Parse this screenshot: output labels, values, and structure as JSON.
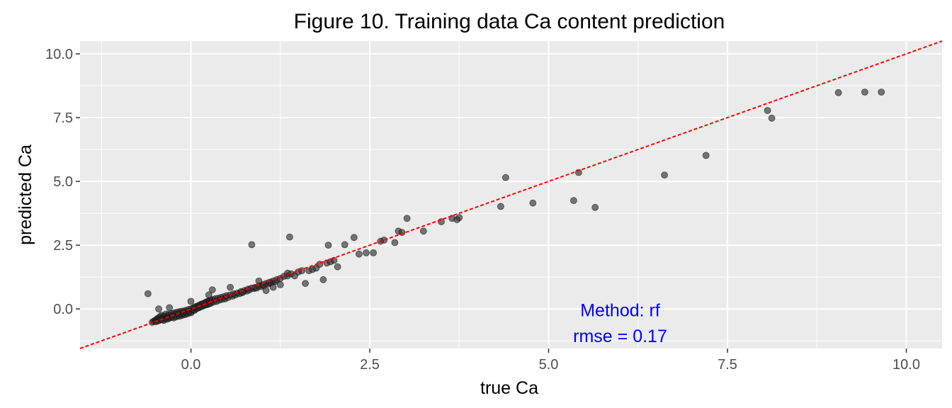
{
  "chart_data": {
    "type": "scatter",
    "title": "Figure 10.  Training data Ca content prediction",
    "xlabel": "true Ca",
    "ylabel": "predicted Ca",
    "xlim": [
      -1.55,
      10.5
    ],
    "ylim": [
      -1.55,
      10.5
    ],
    "xticks": [
      "0.0",
      "2.5",
      "5.0",
      "7.5",
      "10.0"
    ],
    "yticks": [
      "0.0",
      "2.5",
      "5.0",
      "7.5",
      "10.0"
    ],
    "grid": true,
    "reference_line": {
      "style": "dashed",
      "color": "#ff0000",
      "slope": 1,
      "intercept": 0
    },
    "annotations": [
      "Method: rf",
      "rmse = 0.17"
    ],
    "annotation_color": "#0000ff",
    "panel_color": "#ebebeb",
    "point_color": "#333333",
    "points": [
      [
        -0.54,
        -0.52
      ],
      [
        -0.52,
        -0.48
      ],
      [
        -0.5,
        -0.45
      ],
      [
        -0.49,
        -0.5
      ],
      [
        -0.48,
        -0.42
      ],
      [
        -0.47,
        -0.38
      ],
      [
        -0.46,
        -0.47
      ],
      [
        -0.45,
        -0.35
      ],
      [
        -0.44,
        -0.44
      ],
      [
        -0.43,
        -0.3
      ],
      [
        -0.42,
        -0.4
      ],
      [
        -0.41,
        -0.25
      ],
      [
        -0.4,
        -0.42
      ],
      [
        -0.39,
        -0.33
      ],
      [
        -0.38,
        -0.45
      ],
      [
        -0.37,
        -0.28
      ],
      [
        -0.36,
        -0.38
      ],
      [
        -0.35,
        -0.2
      ],
      [
        -0.34,
        -0.35
      ],
      [
        -0.33,
        -0.4
      ],
      [
        -0.32,
        -0.3
      ],
      [
        -0.31,
        -0.22
      ],
      [
        -0.3,
        -0.36
      ],
      [
        -0.29,
        -0.27
      ],
      [
        -0.28,
        -0.33
      ],
      [
        -0.27,
        -0.18
      ],
      [
        -0.26,
        -0.31
      ],
      [
        -0.25,
        -0.24
      ],
      [
        -0.24,
        -0.35
      ],
      [
        -0.23,
        -0.15
      ],
      [
        -0.22,
        -0.28
      ],
      [
        -0.21,
        -0.2
      ],
      [
        -0.2,
        -0.3
      ],
      [
        -0.19,
        -0.12
      ],
      [
        -0.18,
        -0.25
      ],
      [
        -0.17,
        -0.18
      ],
      [
        -0.16,
        -0.28
      ],
      [
        -0.15,
        -0.1
      ],
      [
        -0.14,
        -0.22
      ],
      [
        -0.13,
        -0.15
      ],
      [
        -0.12,
        -0.25
      ],
      [
        -0.11,
        -0.08
      ],
      [
        -0.1,
        -0.2
      ],
      [
        -0.09,
        -0.12
      ],
      [
        -0.08,
        -0.22
      ],
      [
        -0.07,
        -0.05
      ],
      [
        -0.06,
        -0.15
      ],
      [
        -0.05,
        -0.1
      ],
      [
        -0.04,
        -0.18
      ],
      [
        -0.03,
        -0.02
      ],
      [
        -0.02,
        -0.12
      ],
      [
        -0.01,
        -0.08
      ],
      [
        0.0,
        -0.15
      ],
      [
        0.01,
        0.02
      ],
      [
        0.02,
        -0.08
      ],
      [
        0.03,
        -0.02
      ],
      [
        0.04,
        0.05
      ],
      [
        0.05,
        -0.05
      ],
      [
        0.06,
        0.08
      ],
      [
        0.07,
        0.0
      ],
      [
        0.08,
        0.1
      ],
      [
        0.09,
        0.03
      ],
      [
        0.1,
        0.12
      ],
      [
        0.11,
        0.05
      ],
      [
        0.12,
        0.15
      ],
      [
        0.13,
        0.08
      ],
      [
        0.14,
        0.18
      ],
      [
        0.15,
        0.1
      ],
      [
        0.16,
        0.2
      ],
      [
        0.17,
        0.12
      ],
      [
        0.18,
        0.22
      ],
      [
        0.19,
        0.15
      ],
      [
        0.2,
        0.25
      ],
      [
        0.21,
        0.16
      ],
      [
        0.22,
        0.28
      ],
      [
        0.23,
        0.18
      ],
      [
        0.24,
        0.3
      ],
      [
        0.25,
        0.2
      ],
      [
        0.26,
        0.32
      ],
      [
        0.27,
        0.22
      ],
      [
        0.28,
        0.34
      ],
      [
        0.29,
        0.25
      ],
      [
        0.3,
        0.36
      ],
      [
        0.32,
        0.28
      ],
      [
        0.34,
        0.4
      ],
      [
        0.36,
        0.3
      ],
      [
        0.38,
        0.42
      ],
      [
        0.4,
        0.35
      ],
      [
        0.42,
        0.45
      ],
      [
        0.44,
        0.38
      ],
      [
        0.46,
        0.48
      ],
      [
        0.48,
        0.4
      ],
      [
        0.5,
        0.52
      ],
      [
        0.52,
        0.45
      ],
      [
        0.55,
        0.55
      ],
      [
        0.58,
        0.5
      ],
      [
        0.6,
        0.6
      ],
      [
        0.62,
        0.55
      ],
      [
        0.65,
        0.62
      ],
      [
        0.68,
        0.6
      ],
      [
        0.7,
        0.68
      ],
      [
        0.72,
        0.65
      ],
      [
        0.75,
        0.72
      ],
      [
        0.78,
        0.7
      ],
      [
        0.8,
        0.78
      ],
      [
        0.82,
        0.75
      ],
      [
        0.85,
        0.82
      ],
      [
        0.88,
        0.8
      ],
      [
        0.9,
        0.85
      ],
      [
        0.92,
        0.82
      ],
      [
        0.95,
        0.9
      ],
      [
        0.98,
        0.88
      ],
      [
        1.0,
        0.95
      ],
      [
        1.02,
        0.92
      ],
      [
        1.05,
        1.0
      ],
      [
        1.08,
        0.98
      ],
      [
        1.1,
        1.05
      ],
      [
        1.12,
        1.02
      ],
      [
        1.15,
        1.1
      ],
      [
        1.18,
        1.08
      ],
      [
        1.2,
        1.15
      ],
      [
        1.25,
        1.2
      ],
      [
        1.3,
        1.28
      ],
      [
        1.35,
        1.3
      ],
      [
        1.4,
        1.38
      ],
      [
        -0.6,
        0.6
      ],
      [
        -0.45,
        0.0
      ],
      [
        -0.3,
        0.05
      ],
      [
        0.0,
        0.3
      ],
      [
        0.3,
        0.75
      ],
      [
        0.25,
        0.55
      ],
      [
        0.55,
        0.85
      ],
      [
        0.72,
        0.65
      ],
      [
        0.85,
        2.52
      ],
      [
        0.95,
        1.1
      ],
      [
        1.05,
        0.72
      ],
      [
        1.15,
        0.85
      ],
      [
        1.25,
        0.95
      ],
      [
        1.35,
        1.4
      ],
      [
        1.38,
        2.82
      ],
      [
        1.45,
        1.3
      ],
      [
        1.5,
        1.45
      ],
      [
        1.55,
        1.5
      ],
      [
        1.6,
        1.0
      ],
      [
        1.65,
        1.5
      ],
      [
        1.7,
        1.55
      ],
      [
        1.75,
        1.6
      ],
      [
        1.8,
        1.75
      ],
      [
        1.85,
        1.15
      ],
      [
        1.9,
        1.8
      ],
      [
        1.92,
        2.5
      ],
      [
        1.95,
        1.85
      ],
      [
        2.0,
        1.9
      ],
      [
        2.05,
        1.65
      ],
      [
        2.15,
        2.52
      ],
      [
        2.28,
        2.8
      ],
      [
        2.35,
        2.15
      ],
      [
        2.45,
        2.2
      ],
      [
        2.55,
        2.2
      ],
      [
        2.65,
        2.65
      ],
      [
        2.7,
        2.7
      ],
      [
        2.85,
        2.6
      ],
      [
        2.9,
        3.05
      ],
      [
        2.95,
        3.0
      ],
      [
        3.02,
        3.55
      ],
      [
        3.25,
        3.05
      ],
      [
        3.5,
        3.42
      ],
      [
        3.65,
        3.55
      ],
      [
        3.72,
        3.5
      ],
      [
        3.75,
        3.58
      ],
      [
        4.33,
        4.02
      ],
      [
        4.4,
        5.15
      ],
      [
        4.78,
        4.15
      ],
      [
        5.35,
        4.25
      ],
      [
        5.42,
        5.35
      ],
      [
        5.65,
        3.98
      ],
      [
        6.62,
        5.25
      ],
      [
        7.2,
        6.02
      ],
      [
        8.06,
        7.78
      ],
      [
        8.12,
        7.48
      ],
      [
        9.05,
        8.48
      ],
      [
        9.42,
        8.5
      ],
      [
        9.65,
        8.5
      ]
    ]
  }
}
